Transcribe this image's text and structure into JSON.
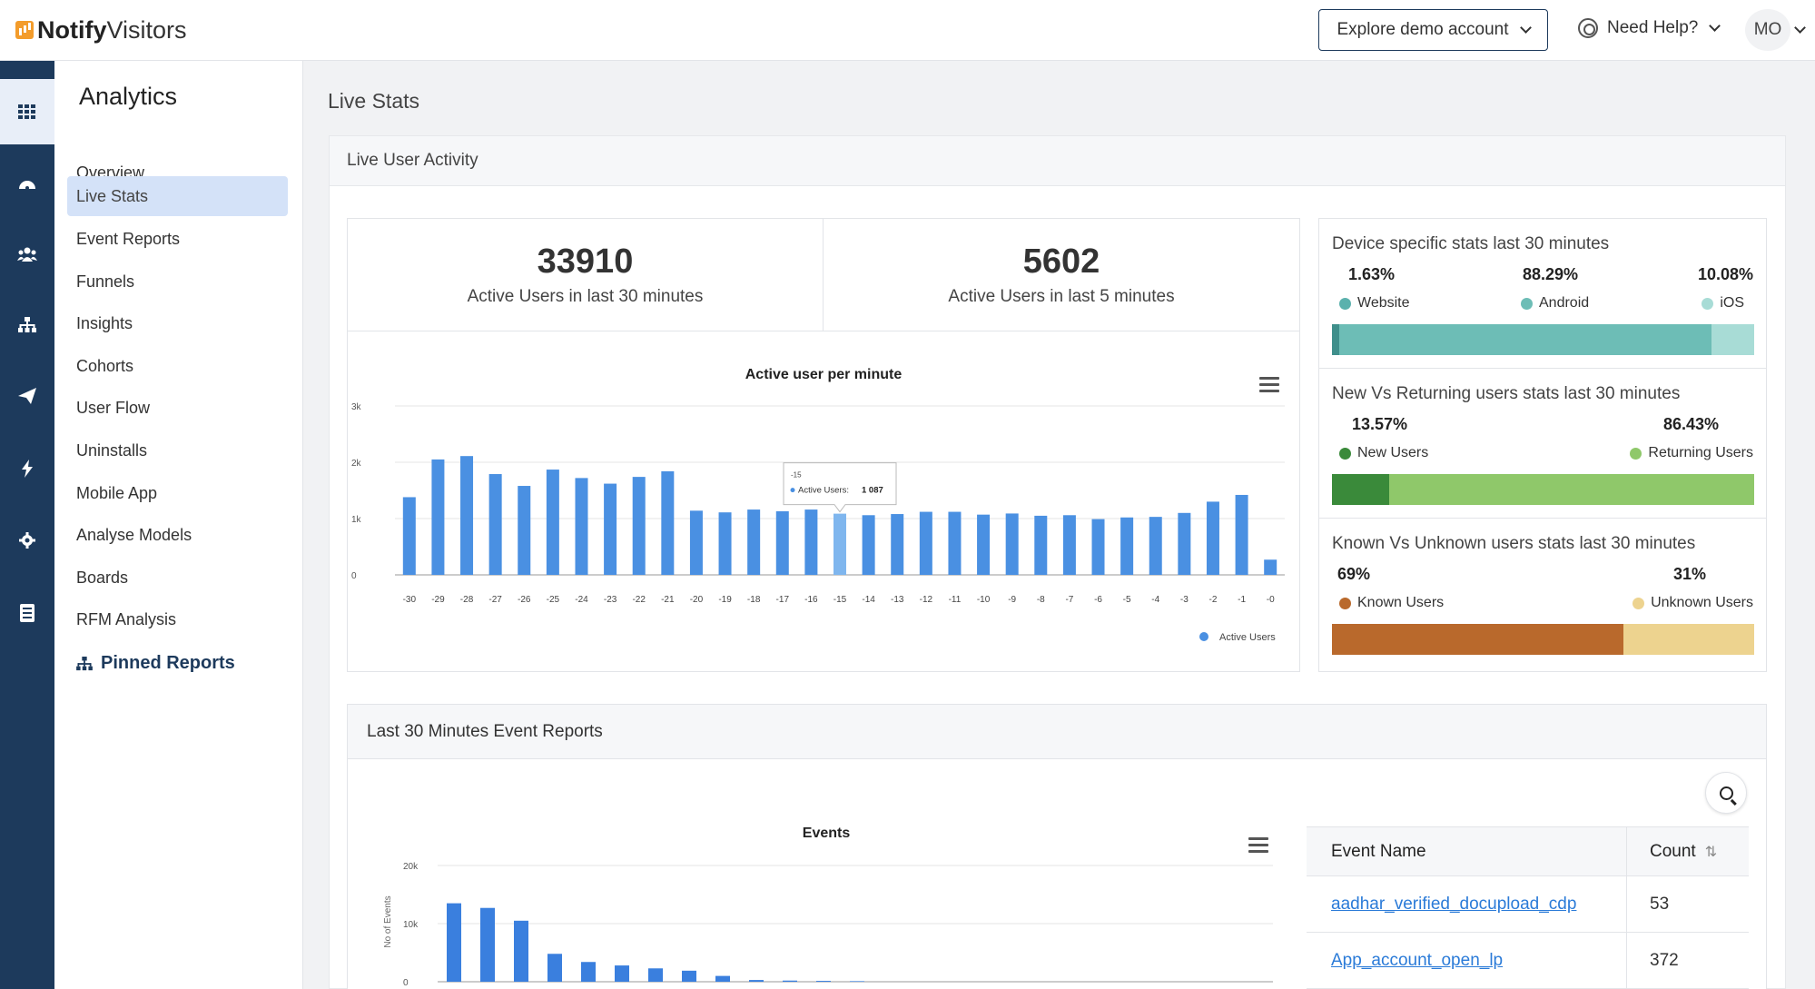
{
  "app": {
    "brand_bold": "Notify",
    "brand_light": "Visitors"
  },
  "header": {
    "demo_button": "Explore demo account",
    "help_label": "Need Help?",
    "avatar_initials": "MO"
  },
  "rail": [
    "apps-grid-icon",
    "dashboard-icon",
    "users-icon",
    "sitemap-icon",
    "send-icon",
    "bolt-icon",
    "gear-icon",
    "report-icon"
  ],
  "sidebar": {
    "title": "Analytics",
    "items": [
      "Overview",
      "Live Stats",
      "Event Reports",
      "Funnels",
      "Insights",
      "Cohorts",
      "User Flow",
      "Uninstalls",
      "Mobile App",
      "Analyse Models",
      "Boards",
      "RFM Analysis"
    ],
    "active_index": 1,
    "pinned": "Pinned Reports"
  },
  "page": {
    "title": "Live Stats",
    "panel_title": "Live User Activity"
  },
  "kpis": [
    {
      "value": "33910",
      "label": "Active Users in last 30 minutes"
    },
    {
      "value": "5602",
      "label": "Active Users in last 5 minutes"
    }
  ],
  "device_stats": {
    "title": "Device specific stats last 30 minutes",
    "items": [
      {
        "pct": "1.63%",
        "label": "Website",
        "color": "#5bb1ad"
      },
      {
        "pct": "88.29%",
        "label": "Android",
        "color": "#6dbdb6"
      },
      {
        "pct": "10.08%",
        "label": "iOS",
        "color": "#a8dcd6"
      }
    ],
    "bar": [
      0.0163,
      0.8829,
      0.1008
    ],
    "bar_colors": [
      "#3f8f8b",
      "#6dbdb6",
      "#a8dcd6"
    ]
  },
  "new_returning": {
    "title": "New Vs Returning users stats last 30 minutes",
    "items": [
      {
        "pct": "13.57%",
        "label": "New Users",
        "color": "#3a8a3a"
      },
      {
        "pct": "86.43%",
        "label": "Returning Users",
        "color": "#8fc86a"
      }
    ],
    "bar": [
      0.1357,
      0.8643
    ]
  },
  "known_unknown": {
    "title": "Known Vs Unknown users stats last 30 minutes",
    "items": [
      {
        "pct": "69%",
        "label": "Known Users",
        "color": "#b9692c"
      },
      {
        "pct": "31%",
        "label": "Unknown Users",
        "color": "#edd38f"
      }
    ],
    "bar": [
      0.69,
      0.31
    ]
  },
  "chart_data": [
    {
      "type": "bar",
      "title": "Active user per minute",
      "categories": [
        "-30",
        "-29",
        "-28",
        "-27",
        "-26",
        "-25",
        "-24",
        "-23",
        "-22",
        "-21",
        "-20",
        "-19",
        "-18",
        "-17",
        "-16",
        "-15",
        "-14",
        "-13",
        "-12",
        "-11",
        "-10",
        "-9",
        "-8",
        "-7",
        "-6",
        "-5",
        "-4",
        "-3",
        "-2",
        "-1",
        "-0"
      ],
      "series": [
        {
          "name": "Active Users",
          "values": [
            1380,
            2050,
            2110,
            1790,
            1580,
            1870,
            1720,
            1620,
            1740,
            1840,
            1140,
            1110,
            1160,
            1130,
            1160,
            1087,
            1060,
            1080,
            1120,
            1120,
            1070,
            1090,
            1050,
            1060,
            990,
            1020,
            1030,
            1100,
            1300,
            1420,
            270
          ]
        }
      ],
      "yticks": [
        "0",
        "1k",
        "2k",
        "3k"
      ],
      "ylim": [
        0,
        3000
      ],
      "tooltip": {
        "category": "-15",
        "label": "Active Users:",
        "value": "1 087"
      },
      "legend": "bottom-right",
      "color": "#4a90e2",
      "highlight_color": "#7fb6ee"
    },
    {
      "type": "bar",
      "title": "Events",
      "ylabel": "No of Events",
      "yticks": [
        "0",
        "10k",
        "20k"
      ],
      "ylim": [
        0,
        20000
      ],
      "values": [
        13500,
        12700,
        10500,
        4800,
        3400,
        2800,
        2300,
        1900,
        1000,
        300,
        200,
        150,
        100
      ],
      "color": "#3a7fde"
    }
  ],
  "events_table": {
    "columns": [
      "Event Name",
      "Count"
    ],
    "rows": [
      {
        "name": "aadhar_verified_docupload_cdp",
        "count": "53"
      },
      {
        "name": "App_account_open_lp",
        "count": "372"
      }
    ]
  }
}
